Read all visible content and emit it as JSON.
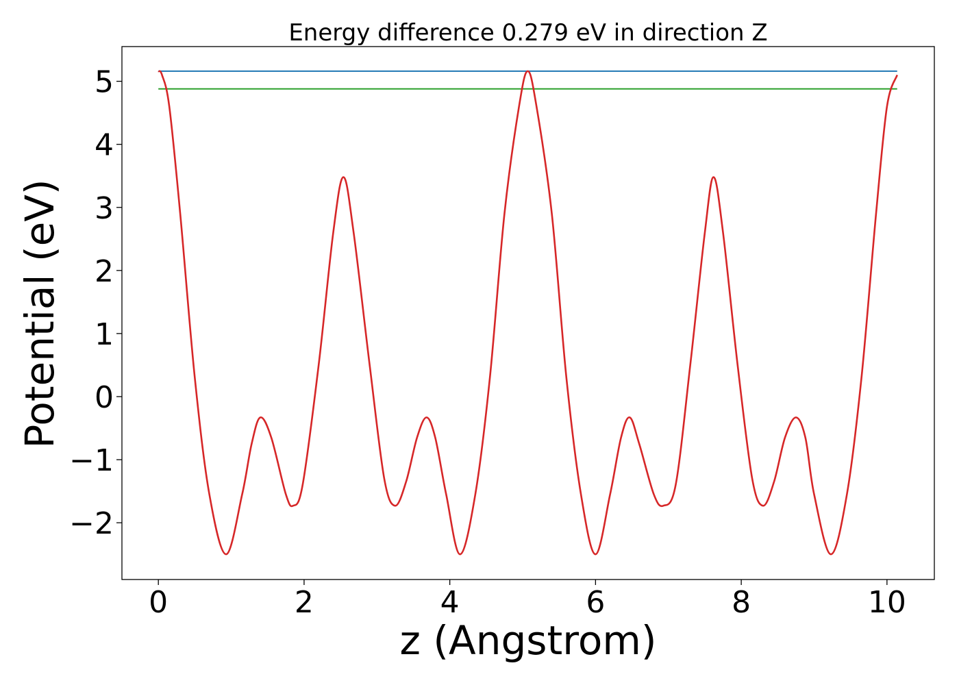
{
  "chart_data": {
    "type": "line",
    "title": "Energy difference 0.279 eV in direction Z",
    "xlabel": "z (Angstrom)",
    "ylabel": "Potential (eV)",
    "xlim": [
      -0.5,
      10.65
    ],
    "ylim": [
      -2.9,
      5.55
    ],
    "xticks": [
      0,
      2,
      4,
      6,
      8,
      10
    ],
    "yticks": [
      5,
      4,
      3,
      2,
      1,
      0,
      -1,
      -2
    ],
    "xtick_labels": [
      "0",
      "2",
      "4",
      "6",
      "8",
      "10"
    ],
    "ytick_labels": [
      "5",
      "4",
      "3",
      "2",
      "1",
      "0",
      "−1",
      "−2"
    ],
    "grid": false,
    "legend": "none",
    "series": [
      {
        "color": "#1f77b4",
        "style": "horizontal",
        "x": [
          0,
          10.14
        ],
        "y": [
          5.16,
          5.16
        ]
      },
      {
        "color": "#2ca02c",
        "style": "horizontal",
        "x": [
          0,
          10.14
        ],
        "y": [
          4.88,
          4.88
        ]
      },
      {
        "color": "#d62728",
        "style": "curve",
        "x": [
          0.0,
          0.05,
          0.15,
          0.3,
          0.5,
          0.7,
          0.93,
          1.15,
          1.28,
          1.4,
          1.55,
          1.75,
          1.85,
          1.98,
          2.2,
          2.4,
          2.54,
          2.68,
          2.9,
          3.1,
          3.25,
          3.4,
          3.55,
          3.68,
          3.8,
          3.95,
          4.14,
          4.35,
          4.55,
          4.75,
          4.95,
          5.07,
          5.19,
          5.4,
          5.6,
          5.8,
          6.0,
          6.2,
          6.35,
          6.47,
          6.6,
          6.8,
          6.93,
          7.1,
          7.3,
          7.5,
          7.62,
          7.75,
          7.95,
          8.15,
          8.3,
          8.45,
          8.6,
          8.75,
          8.88,
          9.0,
          9.23,
          9.45,
          9.65,
          9.85,
          10.0,
          10.14
        ],
        "y": [
          5.16,
          5.1,
          4.6,
          2.9,
          0.3,
          -1.55,
          -2.5,
          -1.55,
          -0.75,
          -0.33,
          -0.65,
          -1.55,
          -1.73,
          -1.4,
          0.5,
          2.6,
          3.48,
          2.6,
          0.5,
          -1.3,
          -1.73,
          -1.35,
          -0.65,
          -0.33,
          -0.65,
          -1.55,
          -2.5,
          -1.55,
          0.3,
          2.9,
          4.6,
          5.16,
          4.6,
          2.9,
          0.3,
          -1.55,
          -2.5,
          -1.55,
          -0.65,
          -0.33,
          -0.75,
          -1.55,
          -1.73,
          -1.4,
          0.5,
          2.6,
          3.48,
          2.6,
          0.5,
          -1.3,
          -1.73,
          -1.35,
          -0.65,
          -0.33,
          -0.65,
          -1.55,
          -2.5,
          -1.55,
          0.3,
          2.9,
          4.6,
          5.1
        ]
      }
    ]
  }
}
